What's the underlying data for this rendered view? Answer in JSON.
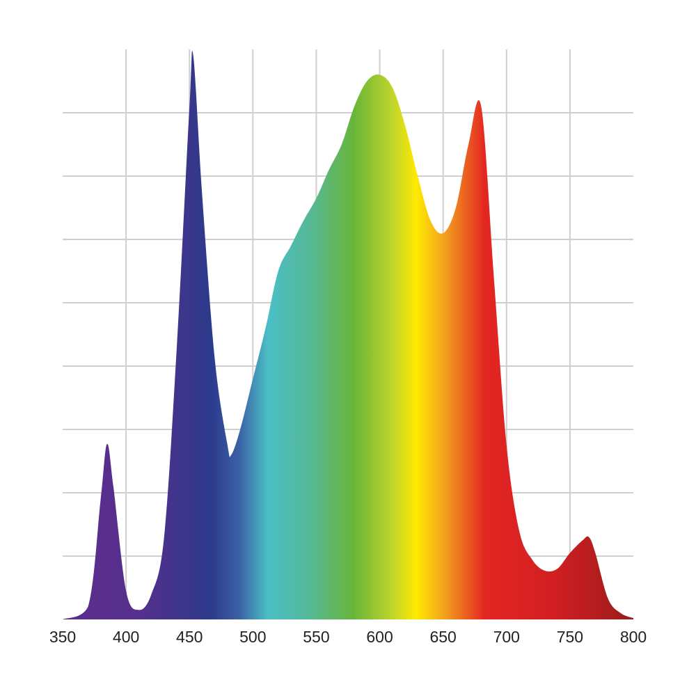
{
  "chart_data": {
    "type": "area",
    "x": [
      350,
      370,
      380,
      385,
      390,
      400,
      410,
      420,
      430,
      440,
      450,
      453,
      460,
      470,
      480,
      483,
      490,
      500,
      510,
      520,
      530,
      540,
      550,
      560,
      570,
      580,
      590,
      600,
      610,
      620,
      630,
      640,
      650,
      660,
      670,
      680,
      690,
      700,
      710,
      720,
      730,
      740,
      750,
      760,
      765,
      770,
      780,
      790,
      800
    ],
    "values": [
      0,
      0.2,
      1.9,
      2.77,
      2.1,
      0.45,
      0.15,
      0.4,
      1.3,
      4.3,
      8.1,
      8.9,
      6.7,
      4.1,
      2.75,
      2.6,
      3.0,
      3.8,
      4.6,
      5.5,
      5.9,
      6.3,
      6.65,
      7.1,
      7.5,
      8.1,
      8.5,
      8.6,
      8.4,
      7.8,
      7.0,
      6.3,
      6.1,
      6.5,
      7.5,
      8.1,
      5.4,
      2.75,
      1.4,
      0.95,
      0.77,
      0.8,
      1.05,
      1.25,
      1.3,
      1.05,
      0.33,
      0.1,
      0.02
    ],
    "xlim": [
      350,
      800
    ],
    "xticks": [
      350,
      400,
      450,
      500,
      550,
      600,
      650,
      700,
      750,
      800
    ],
    "ylim": [
      0,
      9
    ],
    "yticks": [
      1,
      2,
      3,
      4,
      5,
      6,
      7,
      8
    ],
    "grid": true
  }
}
